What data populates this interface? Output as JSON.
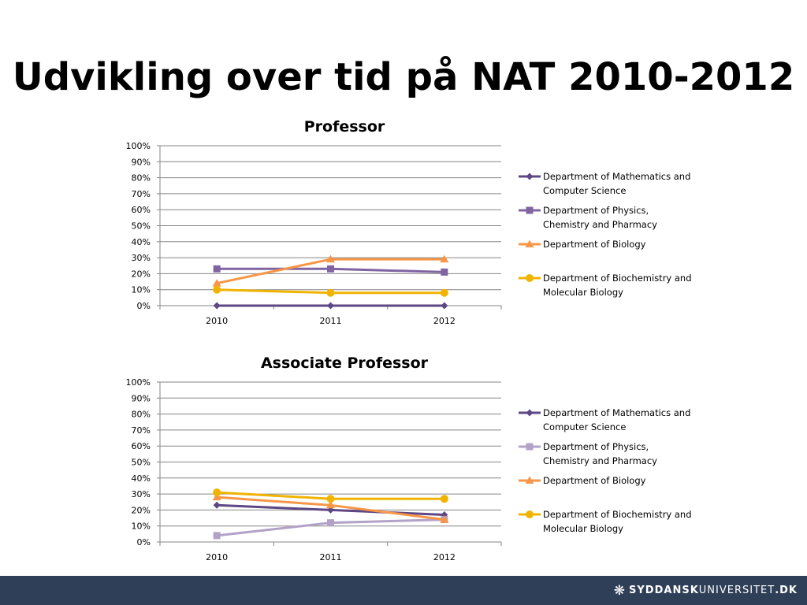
{
  "slide": {
    "title": "Udvikling over tid på NAT 2010-2012"
  },
  "footer": {
    "logo_strong": "SYDDANSK",
    "logo_light": "UNIVERSITET",
    "logo_domain": ".DK",
    "bg_color": "#2f3f58"
  },
  "chart_data": [
    {
      "type": "line",
      "title": "Professor",
      "xlabel": "",
      "ylabel": "",
      "categories": [
        "2010",
        "2011",
        "2012"
      ],
      "ylim": [
        0,
        100
      ],
      "yticks": [
        "0%",
        "10%",
        "20%",
        "30%",
        "40%",
        "50%",
        "60%",
        "70%",
        "80%",
        "90%",
        "100%"
      ],
      "grid": true,
      "legend": "right",
      "series": [
        {
          "name": "Department of Mathematics and Computer Science",
          "values": [
            0,
            0,
            0
          ],
          "color": "#5e4785",
          "marker": "diamond"
        },
        {
          "name": "Department of Physics, Chemistry and Pharmacy",
          "values": [
            23,
            23,
            21
          ],
          "color": "#8064a2",
          "marker": "square"
        },
        {
          "name": "Department of Biology",
          "values": [
            14,
            29,
            29
          ],
          "color": "#f79646",
          "marker": "triangle"
        },
        {
          "name": "Department of Biochemistry and Molecular Biology",
          "values": [
            10,
            8,
            8
          ],
          "color": "#f0b400",
          "marker": "circle"
        }
      ]
    },
    {
      "type": "line",
      "title": "Associate Professor",
      "xlabel": "",
      "ylabel": "",
      "categories": [
        "2010",
        "2011",
        "2012"
      ],
      "ylim": [
        0,
        100
      ],
      "yticks": [
        "0%",
        "10%",
        "20%",
        "30%",
        "40%",
        "50%",
        "60%",
        "70%",
        "80%",
        "90%",
        "100%"
      ],
      "grid": true,
      "legend": "right",
      "series": [
        {
          "name": "Department of Mathematics and Computer Science",
          "values": [
            23,
            20,
            17
          ],
          "color": "#5e4785",
          "marker": "diamond"
        },
        {
          "name": "Department of Physics, Chemistry and Pharmacy",
          "values": [
            4,
            12,
            14
          ],
          "color": "#b3a2c7",
          "marker": "square"
        },
        {
          "name": "Department of Biology",
          "values": [
            28,
            23,
            14
          ],
          "color": "#f79646",
          "marker": "triangle"
        },
        {
          "name": "Department of Biochemistry and Molecular Biology",
          "values": [
            31,
            27,
            27
          ],
          "color": "#f0b400",
          "marker": "circle"
        }
      ]
    }
  ]
}
